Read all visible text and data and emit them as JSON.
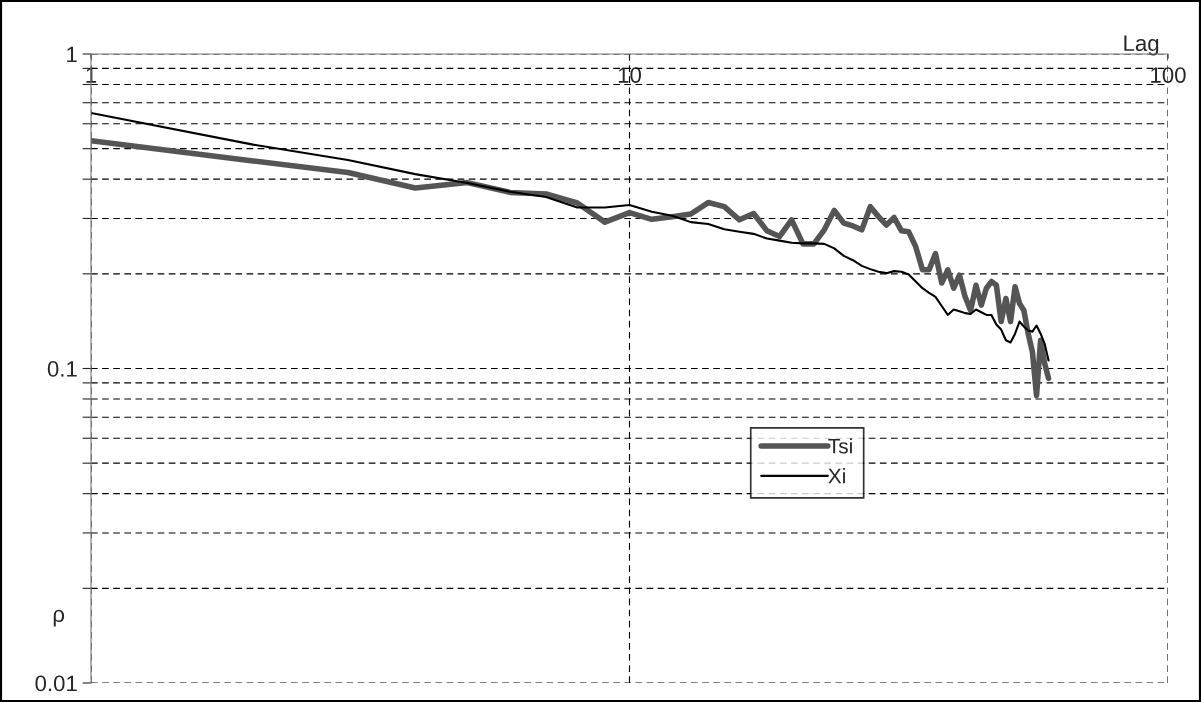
{
  "chart_data": {
    "type": "line",
    "xlabel": "Lag",
    "ylabel": "ρ",
    "log": "xy",
    "grid": true,
    "legend": "center",
    "xlim": [
      1,
      100
    ],
    "ylim": [
      0.01,
      1
    ],
    "xticks": [
      1,
      10,
      100
    ],
    "yticks": [
      1,
      {
        "value": 0.9,
        "label": null
      },
      {
        "value": 0.8,
        "label": null
      },
      {
        "value": 0.7,
        "label": null
      },
      {
        "value": 0.6,
        "label": null
      },
      {
        "value": 0.5,
        "label": null
      },
      {
        "value": 0.4,
        "label": null
      },
      {
        "value": 0.3,
        "label": null
      },
      {
        "value": 0.2,
        "label": null
      },
      0.1,
      {
        "value": 0.09,
        "label": null
      },
      {
        "value": 0.08,
        "label": null
      },
      {
        "value": 0.07,
        "label": null
      },
      {
        "value": 0.06,
        "label": null
      },
      {
        "value": 0.05,
        "label": null
      },
      {
        "value": 0.04,
        "label": null
      },
      {
        "value": 0.03,
        "label": null
      },
      {
        "value": 0.02,
        "label": null
      },
      0.01
    ],
    "x": [
      1,
      2,
      3,
      4,
      5,
      6,
      7,
      8,
      9,
      10,
      11,
      12,
      13,
      14,
      15,
      16,
      17,
      18,
      19,
      20,
      21,
      22,
      23,
      24,
      25,
      26,
      27,
      28,
      29,
      30,
      31,
      32,
      33,
      34,
      35,
      36,
      37,
      38,
      39,
      40,
      41,
      42,
      43,
      44,
      45,
      46,
      47,
      48,
      49,
      50,
      51,
      52,
      53,
      54,
      55,
      56,
      57,
      58,
      59,
      60
    ],
    "series": [
      {
        "name": "Tsi",
        "color": "#555555",
        "values": [
          0.53,
          0.457,
          0.42,
          0.375,
          0.39,
          0.363,
          0.359,
          0.336,
          0.292,
          0.313,
          0.298,
          0.304,
          0.31,
          0.337,
          0.327,
          0.297,
          0.311,
          0.274,
          0.263,
          0.297,
          0.249,
          0.249,
          0.276,
          0.318,
          0.29,
          0.284,
          0.276,
          0.327,
          0.304,
          0.286,
          0.302,
          0.274,
          0.272,
          0.244,
          0.206,
          0.206,
          0.232,
          0.187,
          0.206,
          0.18,
          0.198,
          0.169,
          0.153,
          0.184,
          0.159,
          0.18,
          0.189,
          0.184,
          0.141,
          0.167,
          0.141,
          0.182,
          0.161,
          0.153,
          0.129,
          0.113,
          0.082,
          0.123,
          0.104,
          0.093
        ]
      },
      {
        "name": "Xi",
        "color": "#000000",
        "values": [
          0.649,
          0.515,
          0.46,
          0.415,
          0.389,
          0.365,
          0.351,
          0.325,
          0.325,
          0.331,
          0.315,
          0.306,
          0.292,
          0.288,
          0.277,
          0.272,
          0.268,
          0.259,
          0.255,
          0.251,
          0.25,
          0.25,
          0.249,
          0.241,
          0.228,
          0.221,
          0.212,
          0.207,
          0.203,
          0.201,
          0.204,
          0.203,
          0.199,
          0.189,
          0.18,
          0.174,
          0.169,
          0.158,
          0.148,
          0.154,
          0.152,
          0.15,
          0.149,
          0.154,
          0.151,
          0.148,
          0.148,
          0.138,
          0.133,
          0.123,
          0.121,
          0.129,
          0.141,
          0.136,
          0.132,
          0.131,
          0.137,
          0.129,
          0.12,
          0.106
        ]
      }
    ]
  }
}
